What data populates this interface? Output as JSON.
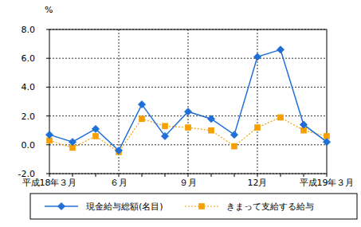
{
  "chart_data": {
    "type": "line",
    "y_label": "%",
    "categories": [
      "平成18年３月",
      null,
      null,
      "６月",
      null,
      null,
      "９月",
      null,
      null,
      "12月",
      null,
      null,
      "平成19年３月"
    ],
    "series": [
      {
        "name": "現金給与総額(名目)",
        "color": "#1f6fd6",
        "marker": "diamond",
        "line_style": "solid",
        "values": [
          0.7,
          0.2,
          1.1,
          -0.4,
          2.8,
          0.6,
          2.3,
          1.8,
          0.7,
          6.1,
          6.6,
          1.4,
          0.2
        ]
      },
      {
        "name": "きまって支給する給与",
        "color": "#f5a000",
        "marker": "square",
        "line_style": "dotted",
        "values": [
          0.3,
          -0.2,
          0.6,
          -0.5,
          1.8,
          1.3,
          1.2,
          1.0,
          -0.1,
          1.2,
          1.9,
          1.0,
          0.6
        ]
      }
    ],
    "ylim": [
      -2,
      8
    ],
    "yticks": [
      {
        "value": -2,
        "label": "-2.0"
      },
      {
        "value": 0,
        "label": "0.0"
      },
      {
        "value": 2,
        "label": "2.0"
      },
      {
        "value": 4,
        "label": "4.0"
      },
      {
        "value": 6,
        "label": "6.0"
      },
      {
        "value": 8,
        "label": "8.0"
      }
    ],
    "grid": true,
    "legend": "bottom"
  }
}
